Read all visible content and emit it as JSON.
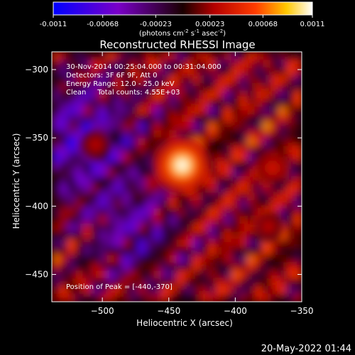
{
  "chart_data": {
    "type": "heatmap",
    "title": "Reconstructed RHESSI Image",
    "xlabel": "Heliocentric X (arcsec)",
    "ylabel": "Heliocentric Y (arcsec)",
    "xlim": [
      -538,
      -350
    ],
    "ylim": [
      -470,
      -287
    ],
    "x_ticks": [
      -500,
      -450,
      -400,
      -350
    ],
    "y_ticks": [
      -300,
      -350,
      -400,
      -450
    ],
    "colorbar": {
      "ticks": [
        "-0.0011",
        "-0.00068",
        "-0.00023",
        "0.00023",
        "0.00068",
        "0.0011"
      ],
      "label": "(photons cm^-2 s^-1 asec^-2)",
      "range": [
        -0.0011,
        0.0011
      ]
    },
    "annotations": [
      "30-Nov-2014 00:25:04.000 to 00:31:04.000",
      "Detectors: 3F 6F 9F, Att 0",
      "Energy Range: 12.0 - 25.0 keV",
      "Clean     Total counts: 4.55E+03"
    ],
    "peak_text": "Position of Peak = [-440,-370]",
    "peak": {
      "x": -440,
      "y": -370,
      "value": 0.0011
    },
    "sources": [
      {
        "x": -440,
        "y": -370,
        "value": 0.0011
      },
      {
        "x": -372,
        "y": -372,
        "value": 0.00045
      },
      {
        "x": -505,
        "y": -355,
        "value": 0.00035
      },
      {
        "x": -375,
        "y": -415,
        "value": 0.00035
      }
    ],
    "grid": false,
    "legend": "colorbar-top"
  },
  "footer": {
    "date": "20-May-2022 01:44"
  }
}
